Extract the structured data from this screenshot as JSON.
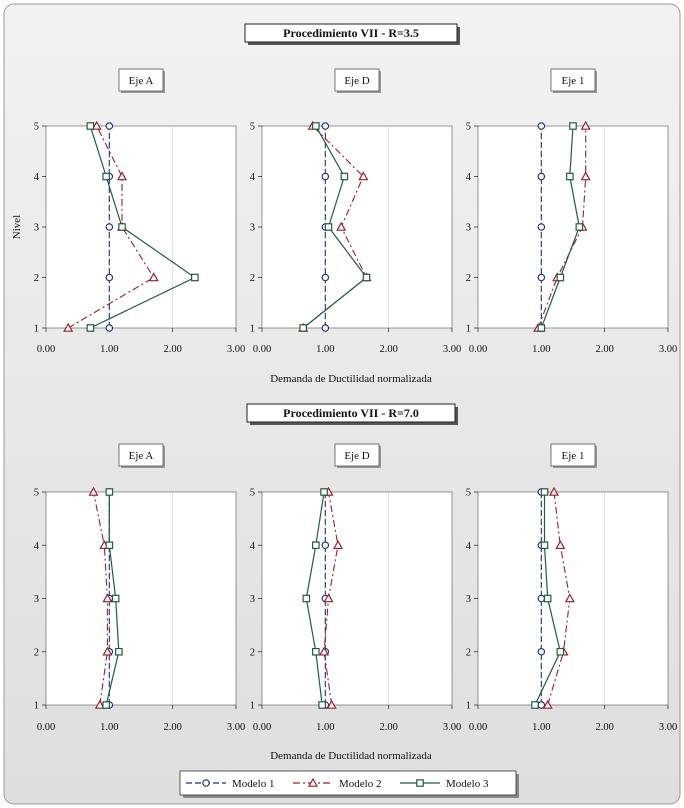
{
  "figure": {
    "xlabel": "Demanda de Ductilidad normalizada",
    "ylabel": "Nivel",
    "sections": [
      {
        "title": "Procedimiento VII - R=3.5"
      },
      {
        "title": "Procedimiento VII - R=7.0"
      }
    ],
    "legend": [
      "Modelo 1",
      "Modelo 2",
      "Modelo 3"
    ],
    "xticks": [
      "0.00",
      "1.00",
      "2.00",
      "3.00"
    ],
    "yticks": [
      "1",
      "2",
      "3",
      "4",
      "5"
    ]
  },
  "colors": {
    "modelo1": "#1f2f8f",
    "modelo2": "#a01c2a",
    "modelo3": "#1e5e3c",
    "panel_border": "#7a7a7a",
    "background_top": "#f2f2f2",
    "background_bottom": "#dedede"
  },
  "chart_data": [
    {
      "type": "line",
      "section": "Procedimiento VII - R=3.5",
      "title": "Eje A",
      "xlim": [
        0,
        3
      ],
      "ylim": [
        1,
        5
      ],
      "y": [
        1,
        2,
        3,
        4,
        5
      ],
      "series": [
        {
          "name": "Modelo 1",
          "x": [
            1.0,
            1.0,
            1.0,
            1.0,
            1.0
          ]
        },
        {
          "name": "Modelo 2",
          "x": [
            0.35,
            1.7,
            1.2,
            1.2,
            0.8
          ]
        },
        {
          "name": "Modelo 3",
          "x": [
            0.7,
            2.35,
            1.2,
            0.95,
            0.7
          ]
        }
      ]
    },
    {
      "type": "line",
      "section": "Procedimiento VII - R=3.5",
      "title": "Eje D",
      "xlim": [
        0,
        3
      ],
      "ylim": [
        1,
        5
      ],
      "y": [
        1,
        2,
        3,
        4,
        5
      ],
      "series": [
        {
          "name": "Modelo 1",
          "x": [
            1.0,
            1.0,
            1.0,
            1.0,
            1.0
          ]
        },
        {
          "name": "Modelo 2",
          "x": [
            0.65,
            1.65,
            1.25,
            1.6,
            0.8
          ]
        },
        {
          "name": "Modelo 3",
          "x": [
            0.65,
            1.65,
            1.05,
            1.3,
            0.85
          ]
        }
      ]
    },
    {
      "type": "line",
      "section": "Procedimiento VII - R=3.5",
      "title": "Eje 1",
      "xlim": [
        0,
        3
      ],
      "ylim": [
        1,
        5
      ],
      "y": [
        1,
        2,
        3,
        4,
        5
      ],
      "series": [
        {
          "name": "Modelo 1",
          "x": [
            1.0,
            1.0,
            1.0,
            1.0,
            1.0
          ]
        },
        {
          "name": "Modelo 2",
          "x": [
            0.95,
            1.25,
            1.65,
            1.7,
            1.7
          ]
        },
        {
          "name": "Modelo 3",
          "x": [
            1.0,
            1.3,
            1.6,
            1.45,
            1.5
          ]
        }
      ]
    },
    {
      "type": "line",
      "section": "Procedimiento VII - R=7.0",
      "title": "Eje A",
      "xlim": [
        0,
        3
      ],
      "ylim": [
        1,
        5
      ],
      "y": [
        1,
        2,
        3,
        4,
        5
      ],
      "series": [
        {
          "name": "Modelo 1",
          "x": [
            1.0,
            1.0,
            1.0,
            1.0,
            1.0
          ]
        },
        {
          "name": "Modelo 2",
          "x": [
            0.85,
            0.97,
            0.97,
            0.92,
            0.75
          ]
        },
        {
          "name": "Modelo 3",
          "x": [
            0.95,
            1.15,
            1.1,
            1.0,
            1.0
          ]
        }
      ]
    },
    {
      "type": "line",
      "section": "Procedimiento VII - R=7.0",
      "title": "Eje D",
      "xlim": [
        0,
        3
      ],
      "ylim": [
        1,
        5
      ],
      "y": [
        1,
        2,
        3,
        4,
        5
      ],
      "series": [
        {
          "name": "Modelo 1",
          "x": [
            1.0,
            1.0,
            1.0,
            1.0,
            1.0
          ]
        },
        {
          "name": "Modelo 2",
          "x": [
            1.1,
            0.98,
            1.05,
            1.2,
            1.05
          ]
        },
        {
          "name": "Modelo 3",
          "x": [
            0.95,
            0.85,
            0.7,
            0.85,
            0.98
          ]
        }
      ]
    },
    {
      "type": "line",
      "section": "Procedimiento VII - R=7.0",
      "title": "Eje 1",
      "xlim": [
        0,
        3
      ],
      "ylim": [
        1,
        5
      ],
      "y": [
        1,
        2,
        3,
        4,
        5
      ],
      "series": [
        {
          "name": "Modelo 1",
          "x": [
            1.0,
            1.0,
            1.0,
            1.0,
            1.0
          ]
        },
        {
          "name": "Modelo 2",
          "x": [
            1.1,
            1.35,
            1.45,
            1.3,
            1.2
          ]
        },
        {
          "name": "Modelo 3",
          "x": [
            0.9,
            1.3,
            1.1,
            1.05,
            1.05
          ]
        }
      ]
    }
  ]
}
